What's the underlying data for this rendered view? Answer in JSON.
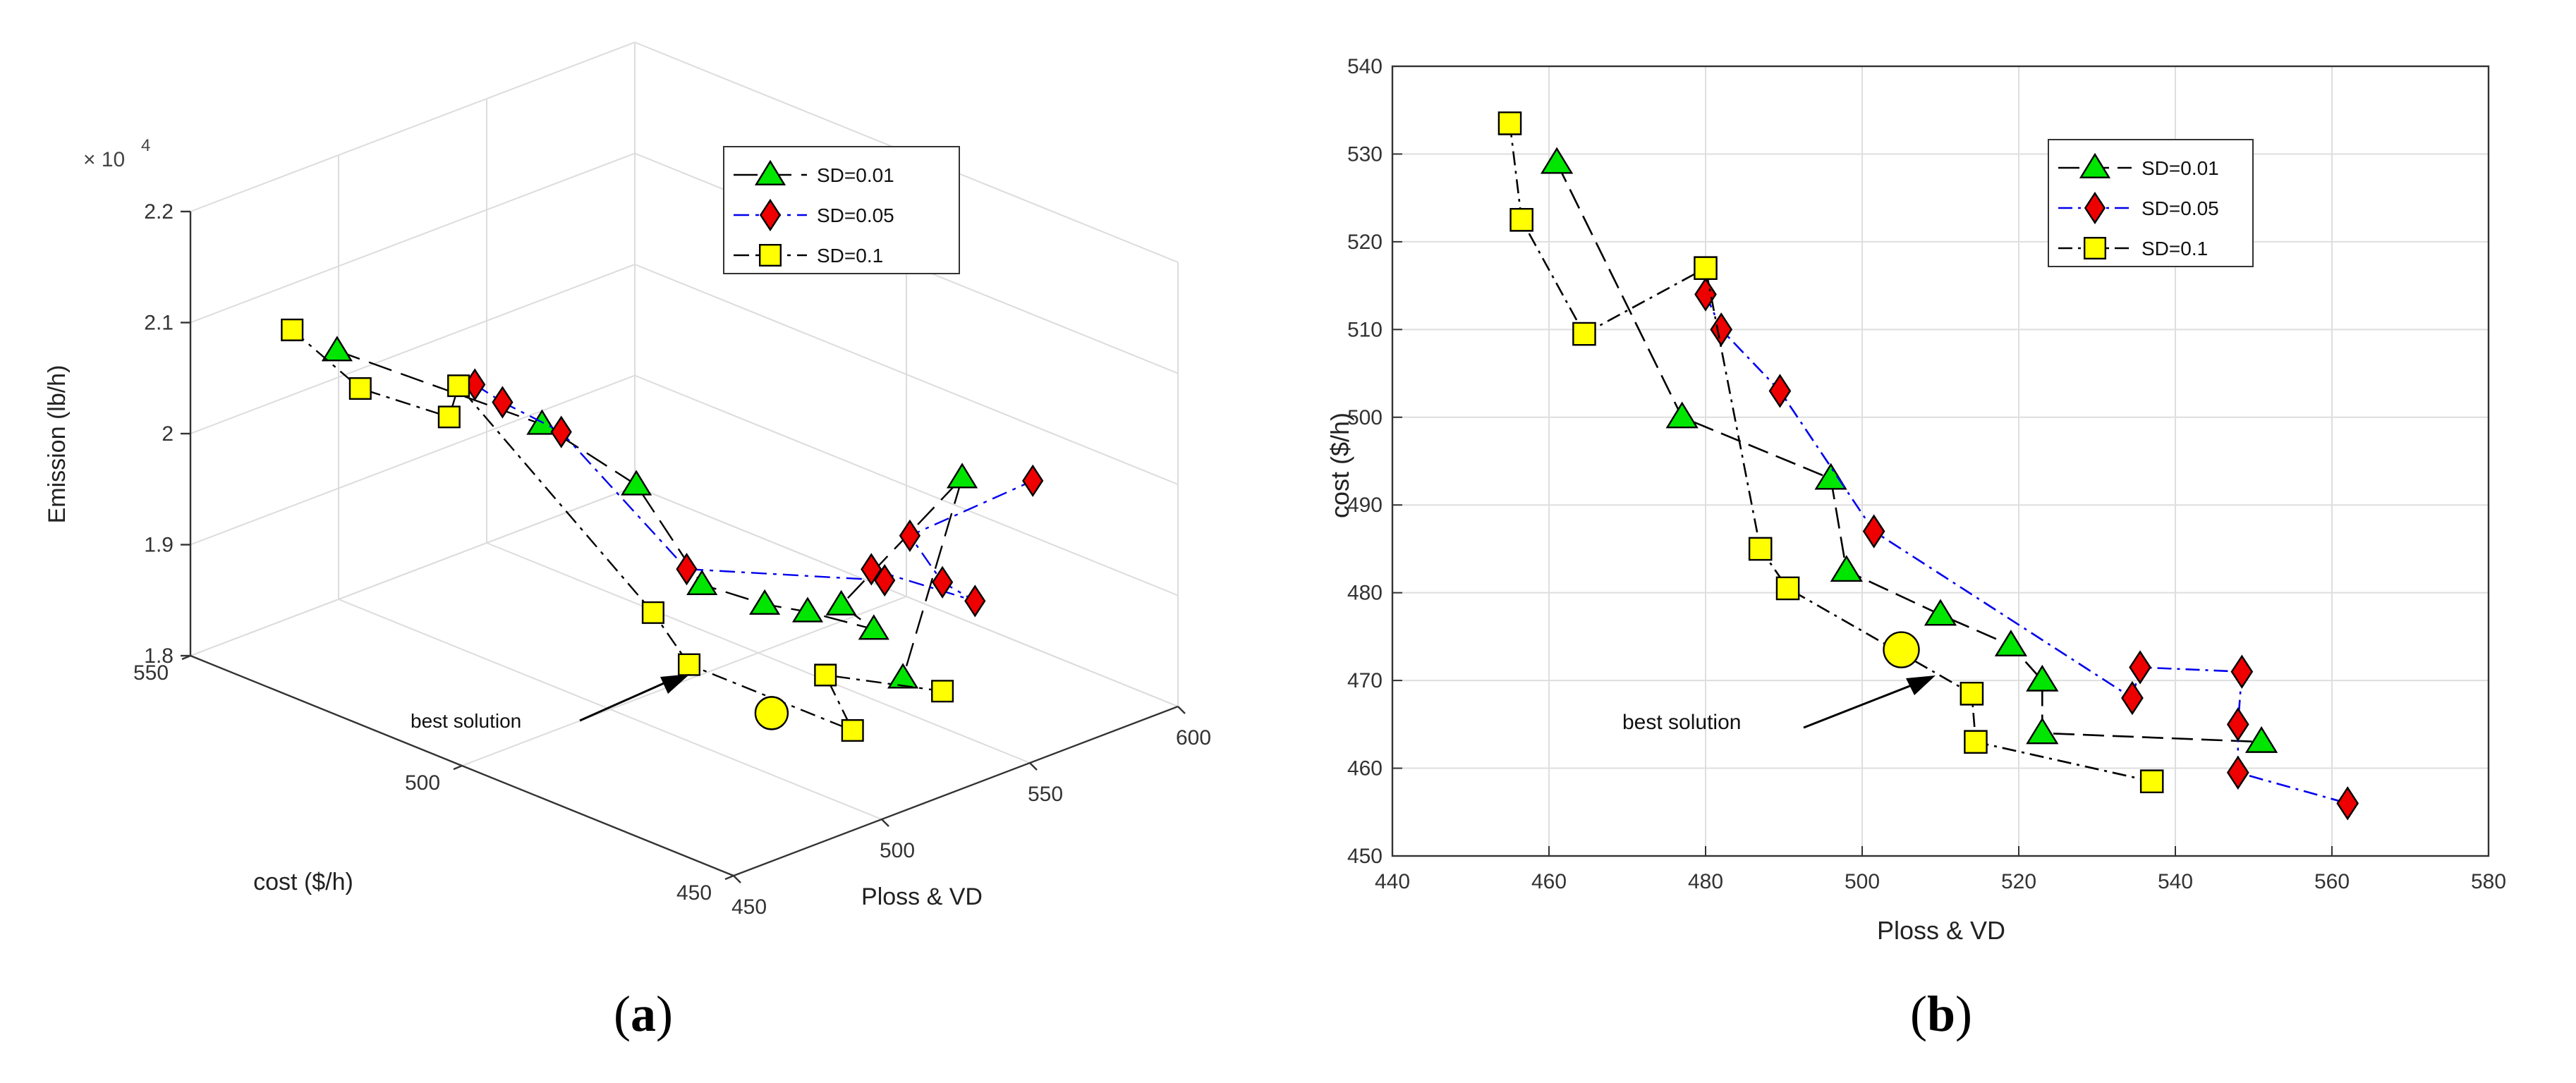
{
  "chart_data": [
    {
      "type": "scatter3d",
      "panel": "a",
      "panel_label": "(a)",
      "panel_letter": "a",
      "xlabel": "Ploss & VD",
      "ylabel": "cost ($/h)",
      "zlabel": "Emission (lb/h)",
      "z_multiplier": "× 10",
      "z_exponent": "4",
      "xlim": [
        450,
        600
      ],
      "ylim": [
        450,
        550
      ],
      "zlim": [
        1.8,
        2.2
      ],
      "x_ticks": [
        "450",
        "500",
        "550",
        "600"
      ],
      "y_ticks": [
        "450",
        "500",
        "550"
      ],
      "z_ticks": [
        "1.8",
        "1.9",
        "2",
        "2.1",
        "2.2"
      ],
      "annotation": "best solution",
      "best_solution": {
        "x": 505,
        "y": 473,
        "z": 1.845
      },
      "legend": [
        "SD=0.01",
        "SD=0.05",
        "SD=0.1"
      ],
      "series": [
        {
          "name": "SD=0.01",
          "marker": "triangle",
          "color": "#00e600",
          "line_color": "#000000",
          "dash": "34 14",
          "points": [
            [
              461,
              529,
              2.105
            ],
            [
              477,
              500,
              2.08
            ],
            [
              496,
              493,
              2.02
            ],
            [
              498,
              482,
              1.95
            ],
            [
              510,
              477,
              1.93
            ],
            [
              519,
              474,
              1.92
            ],
            [
              523,
              464,
              1.92
            ],
            [
              523,
              470,
              1.93
            ],
            [
              551,
              463,
              2.03
            ],
            [
              531,
              463,
              1.87
            ]
          ]
        },
        {
          "name": "SD=0.05",
          "marker": "diamond",
          "color": "#ee0000",
          "line_color": "#0000ee",
          "dash": "22 9 5 9",
          "points": [
            [
              480,
              514,
              2.085
            ],
            [
              482,
              510,
              2.075
            ],
            [
              489,
              503,
              2.055
            ],
            [
              502,
              487,
              1.95
            ],
            [
              534,
              468,
              1.945
            ],
            [
              535,
              471,
              1.948
            ],
            [
              548,
              459,
              1.93
            ],
            [
              548,
              465,
              1.935
            ],
            [
              548,
              471,
              1.965
            ],
            [
              562,
              456,
              2.03
            ]
          ]
        },
        {
          "name": "SD=0.1",
          "marker": "square",
          "color": "#ffff00",
          "line_color": "#000000",
          "dash": "22 9 5 9",
          "points": [
            [
              455,
              534,
              2.12
            ],
            [
              456,
              522,
              2.09
            ],
            [
              464,
              510,
              2.08
            ],
            [
              480,
              517,
              2.078
            ],
            [
              487,
              485,
              1.93
            ],
            [
              490,
              480,
              1.89
            ],
            [
              514,
              463,
              1.84
            ],
            [
              514,
              468,
              1.88
            ],
            [
              537,
              459,
              1.86
            ]
          ]
        }
      ]
    },
    {
      "type": "scatter",
      "panel": "b",
      "panel_label": "(b)",
      "panel_letter": "b",
      "xlabel": "Ploss & VD",
      "ylabel": "cost ($/h)",
      "xlim": [
        440,
        580
      ],
      "ylim": [
        450,
        540
      ],
      "x_ticks": [
        440,
        460,
        480,
        500,
        520,
        540,
        560,
        580
      ],
      "y_ticks": [
        450,
        460,
        470,
        480,
        490,
        500,
        510,
        520,
        530,
        540
      ],
      "annotation": "best solution",
      "best_solution": {
        "x": 505,
        "y": 473.5
      },
      "legend": [
        "SD=0.01",
        "SD=0.05",
        "SD=0.1"
      ],
      "series": [
        {
          "name": "SD=0.01",
          "marker": "triangle",
          "color": "#00e600",
          "line_color": "#000000",
          "dash": "30 12",
          "x": [
            461,
            477,
            496,
            498,
            510,
            519,
            523,
            523,
            551
          ],
          "y": [
            529,
            500,
            493,
            482.5,
            477.5,
            474,
            470,
            464,
            463
          ]
        },
        {
          "name": "SD=0.05",
          "marker": "diamond",
          "color": "#ee0000",
          "line_color": "#0000ee",
          "dash": "20 8 4 8",
          "x": [
            480,
            482,
            489.5,
            501.5,
            534.5,
            535.5,
            548.5,
            548,
            548,
            562
          ],
          "y": [
            514,
            510,
            503,
            487,
            468,
            471.5,
            471,
            465,
            459.5,
            456
          ]
        },
        {
          "name": "SD=0.1",
          "marker": "square",
          "color": "#ffff00",
          "line_color": "#000000",
          "dash": "20 8 4 8",
          "x": [
            455,
            456.5,
            464.5,
            480,
            487,
            490.5,
            514,
            514.5,
            537
          ],
          "y": [
            533.5,
            522.5,
            509.5,
            517,
            485,
            480.5,
            468.5,
            463,
            458.5
          ]
        }
      ]
    }
  ]
}
